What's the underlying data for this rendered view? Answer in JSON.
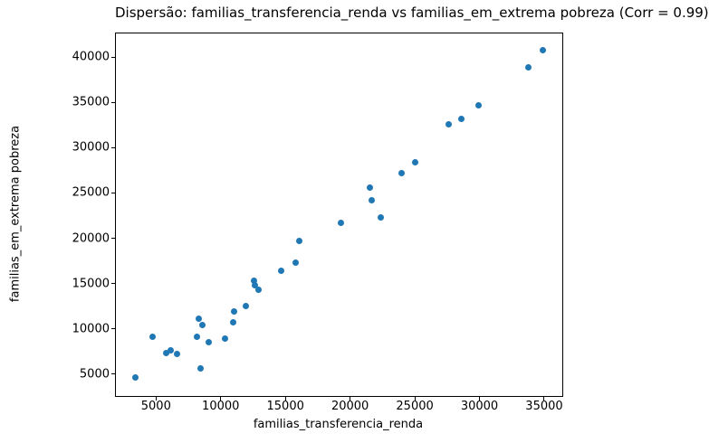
{
  "chart_data": {
    "type": "scatter",
    "title": "Dispersão: familias_transferencia_renda vs familias_em_extrema pobreza (Corr = 0.99)",
    "xlabel": "familias_transferencia_renda",
    "ylabel": "familias_em_extrema pobreza",
    "xlim": [
      1900,
      36400
    ],
    "ylim": [
      2600,
      42600
    ],
    "xticks": [
      5000,
      10000,
      15000,
      20000,
      25000,
      30000,
      35000
    ],
    "yticks": [
      5000,
      10000,
      15000,
      20000,
      25000,
      30000,
      35000,
      40000
    ],
    "grid": false,
    "legend": null,
    "marker_color": "#1f77b4",
    "points": [
      [
        3400,
        4600
      ],
      [
        4750,
        9100
      ],
      [
        5750,
        7300
      ],
      [
        6150,
        7650
      ],
      [
        6650,
        7200
      ],
      [
        8150,
        9100
      ],
      [
        8290,
        11100
      ],
      [
        8430,
        5650
      ],
      [
        8590,
        10450
      ],
      [
        9080,
        8500
      ],
      [
        10350,
        8900
      ],
      [
        10950,
        10700
      ],
      [
        11000,
        11900
      ],
      [
        11950,
        12550
      ],
      [
        12600,
        15300
      ],
      [
        12650,
        14800
      ],
      [
        12900,
        14300
      ],
      [
        14700,
        16450
      ],
      [
        15800,
        17350
      ],
      [
        16050,
        19700
      ],
      [
        19300,
        21750
      ],
      [
        21500,
        25550
      ],
      [
        21650,
        24200
      ],
      [
        22400,
        22300
      ],
      [
        24000,
        27200
      ],
      [
        25000,
        28350
      ],
      [
        27600,
        32600
      ],
      [
        28600,
        33150
      ],
      [
        29900,
        34700
      ],
      [
        33800,
        38900
      ],
      [
        34900,
        40800
      ]
    ]
  }
}
